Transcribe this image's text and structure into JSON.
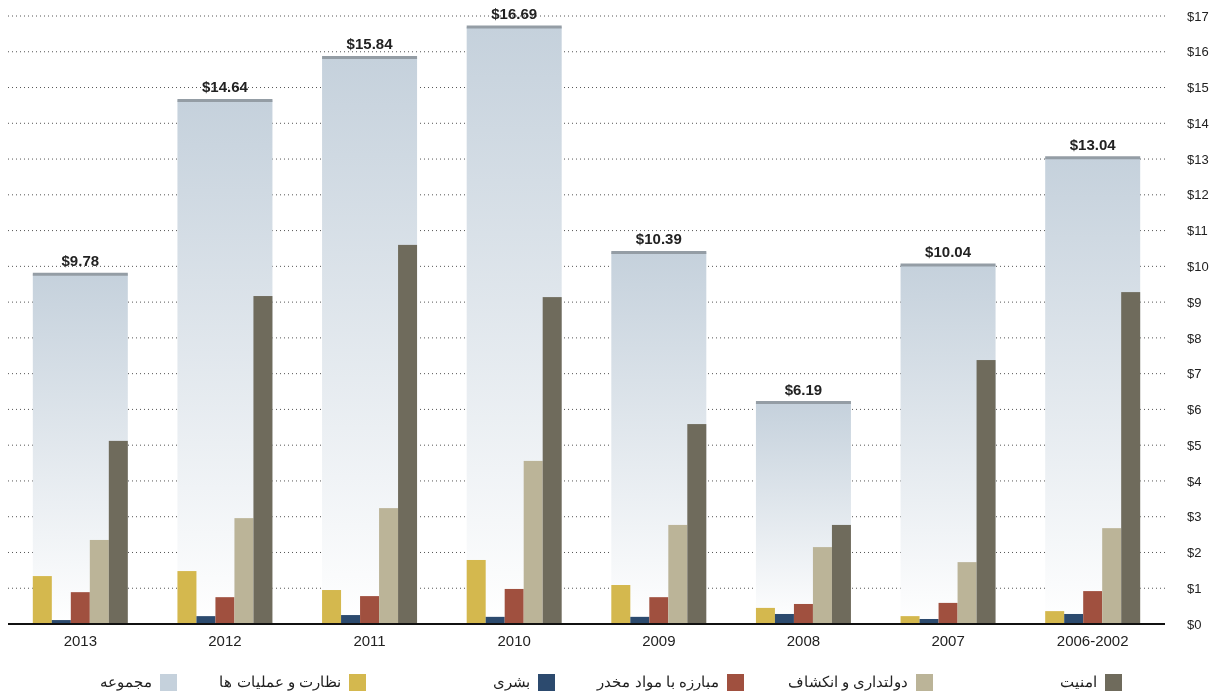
{
  "chart_data": {
    "type": "bar",
    "categories": [
      "2013",
      "2012",
      "2011",
      "2010",
      "2009",
      "2008",
      "2007",
      "2006-2002"
    ],
    "series": [
      {
        "name": "مجموعه",
        "color": "#c5d1dc",
        "values": [
          9.78,
          14.64,
          15.84,
          16.69,
          10.39,
          6.19,
          10.04,
          13.04
        ],
        "value_labels": [
          "$9.78",
          "$14.64",
          "$15.84",
          "$16.69",
          "$10.39",
          "$6.19",
          "$10.04",
          "$13.04"
        ]
      },
      {
        "name": "نظارت و عملیات ها",
        "color": "#d4b84e",
        "values": [
          1.34,
          1.48,
          0.95,
          1.79,
          1.09,
          0.45,
          0.22,
          0.36
        ]
      },
      {
        "name": "بشری",
        "color": "#2c4a6e",
        "values": [
          0.11,
          0.22,
          0.25,
          0.2,
          0.2,
          0.28,
          0.14,
          0.28
        ]
      },
      {
        "name": "مبارزه با مواد مخدر",
        "color": "#a0503f",
        "values": [
          0.89,
          0.75,
          0.78,
          0.98,
          0.75,
          0.56,
          0.59,
          0.92
        ]
      },
      {
        "name": "دولتداری و انکشاف",
        "color": "#bbb498",
        "values": [
          2.35,
          2.96,
          3.24,
          4.56,
          2.77,
          2.15,
          1.73,
          2.68
        ]
      },
      {
        "name": "امنیت",
        "color": "#6f6b5c",
        "values": [
          5.12,
          9.17,
          10.6,
          9.14,
          5.59,
          2.77,
          7.38,
          9.28
        ]
      }
    ],
    "ylim": [
      0,
      17
    ],
    "yticks": [
      {
        "value": 0,
        "label": "$0"
      },
      {
        "value": 1,
        "label": "$1"
      },
      {
        "value": 2,
        "label": "$2"
      },
      {
        "value": 3,
        "label": "$3"
      },
      {
        "value": 4,
        "label": "$4"
      },
      {
        "value": 5,
        "label": "$5"
      },
      {
        "value": 6,
        "label": "$6"
      },
      {
        "value": 7,
        "label": "$7"
      },
      {
        "value": 8,
        "label": "$8"
      },
      {
        "value": 9,
        "label": "$9"
      },
      {
        "value": 10,
        "label": "$10"
      },
      {
        "value": 11,
        "label": "$11"
      },
      {
        "value": 12,
        "label": "$12"
      },
      {
        "value": 13,
        "label": "$13"
      },
      {
        "value": 14,
        "label": "$14"
      },
      {
        "value": 15,
        "label": "$15"
      },
      {
        "value": 16,
        "label": "$16"
      },
      {
        "value": 17,
        "label": "$17"
      }
    ],
    "grid": "y",
    "legend": "bottom"
  }
}
